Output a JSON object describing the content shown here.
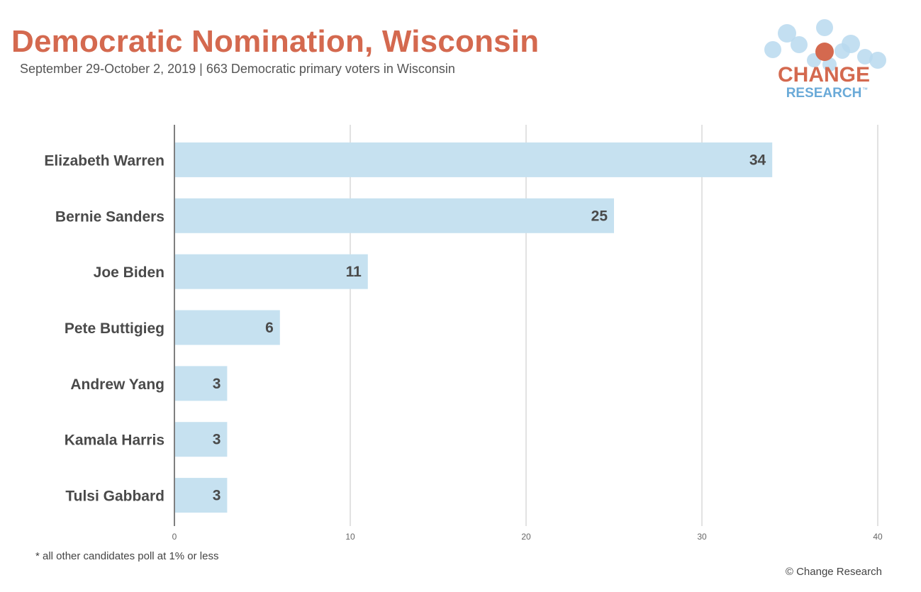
{
  "title": "Democratic Nomination, Wisconsin",
  "subtitle": "September 29-October 2, 2019 | 663 Democratic primary voters in Wisconsin",
  "logo": {
    "line1": "CHANGE",
    "line2": "RESEARCH",
    "trademark": "™",
    "primary_color": "#d4694f",
    "secondary_color": "#6aaad8",
    "bubble_color": "#b9d9ef"
  },
  "footnote": "* all other candidates poll at 1% or less",
  "copyright": "© Change Research",
  "colors": {
    "bar": "#c6e1f0",
    "title": "#d4694f",
    "label": "#4a4a4a",
    "grid": "#d9d9d9",
    "axis": "#555555"
  },
  "chart_data": {
    "type": "bar",
    "orientation": "horizontal",
    "categories": [
      "Elizabeth Warren",
      "Bernie Sanders",
      "Joe Biden",
      "Pete Buttigieg",
      "Andrew Yang",
      "Kamala Harris",
      "Tulsi Gabbard"
    ],
    "values": [
      34,
      25,
      11,
      6,
      3,
      3,
      3
    ],
    "data_labels": [
      "34",
      "25",
      "11",
      "6",
      "3",
      "3",
      "3"
    ],
    "xlim": [
      0,
      40
    ],
    "x_ticks": [
      0,
      10,
      20,
      30,
      40
    ],
    "x_tick_labels": [
      "0",
      "10",
      "20",
      "30",
      "40"
    ],
    "grid": true,
    "legend": false
  }
}
